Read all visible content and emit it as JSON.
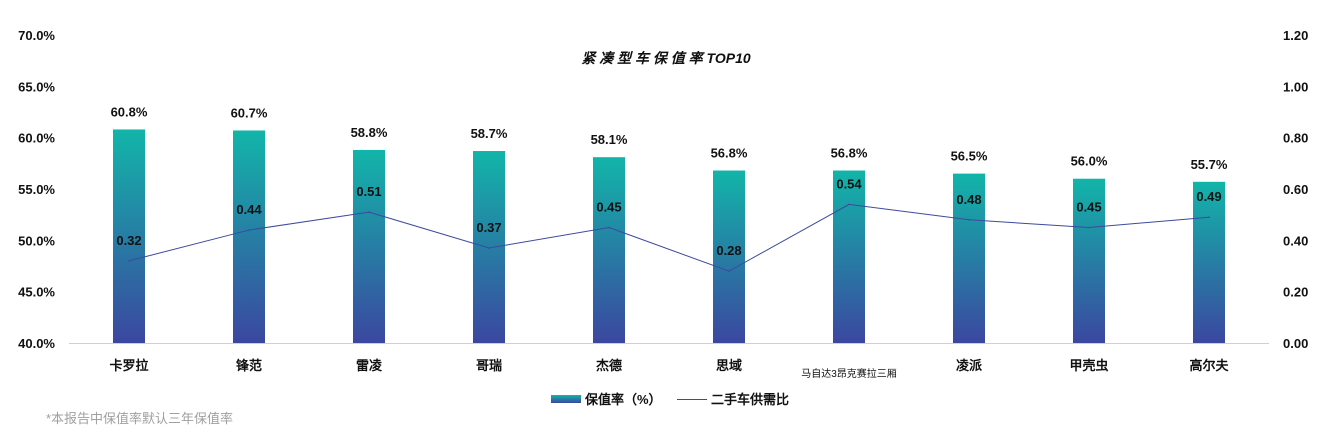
{
  "chart_data": {
    "type": "bar+line",
    "title": "紧 凑 型 车 保 值 率 TOP10",
    "categories": [
      "卡罗拉",
      "锋范",
      "雷凌",
      "哥瑞",
      "杰德",
      "思域",
      "马自达3昂克赛拉三厢",
      "凌派",
      "甲壳虫",
      "高尔夫"
    ],
    "series": [
      {
        "name": "保值率（%）",
        "type": "bar",
        "axis": "left",
        "values": [
          60.8,
          60.7,
          58.8,
          58.7,
          58.1,
          56.8,
          56.8,
          56.5,
          56.0,
          55.7
        ],
        "labels": [
          "60.8%",
          "60.7%",
          "58.8%",
          "58.7%",
          "58.1%",
          "56.8%",
          "56.8%",
          "56.5%",
          "56.0%",
          "55.7%"
        ]
      },
      {
        "name": "二手车供需比",
        "type": "line",
        "axis": "right",
        "values": [
          0.32,
          0.44,
          0.51,
          0.37,
          0.45,
          0.28,
          0.54,
          0.48,
          0.45,
          0.49
        ],
        "labels": [
          "0.32",
          "0.44",
          "0.51",
          "0.37",
          "0.45",
          "0.28",
          "0.54",
          "0.48",
          "0.45",
          "0.49"
        ]
      }
    ],
    "left_axis": {
      "range": [
        40,
        70
      ],
      "ticks": [
        "40.0%",
        "45.0%",
        "50.0%",
        "55.0%",
        "60.0%",
        "65.0%",
        "70.0%"
      ]
    },
    "right_axis": {
      "range": [
        0,
        1.2
      ],
      "ticks": [
        "0.00",
        "0.20",
        "0.40",
        "0.60",
        "0.80",
        "1.00",
        "1.20"
      ]
    },
    "grid": false,
    "legend": "bottom-center",
    "colors": {
      "bar_top": "#12b5a9",
      "bar_bottom": "#3b47a0",
      "line": "#3d4a9c"
    }
  },
  "footnote": "*本报告中保值率默认三年保值率"
}
